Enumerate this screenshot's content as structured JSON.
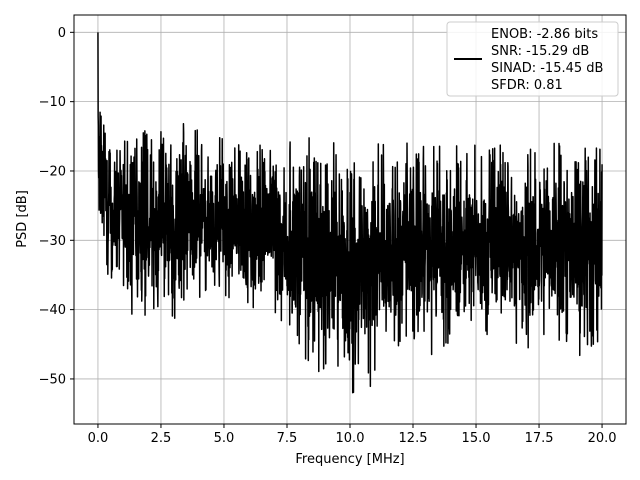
{
  "chart_data": {
    "type": "line",
    "title": "",
    "xlabel": "Frequency [MHz]",
    "ylabel": "PSD [dB]",
    "xlim": [
      -0.95,
      20.95
    ],
    "ylim": [
      -56.5,
      2.5
    ],
    "xticks": [
      0.0,
      2.5,
      5.0,
      7.5,
      10.0,
      12.5,
      15.0,
      17.5,
      20.0
    ],
    "xtick_labels": [
      "0.0",
      "2.5",
      "5.0",
      "7.5",
      "10.0",
      "12.5",
      "15.0",
      "17.5",
      "20.0"
    ],
    "yticks": [
      0,
      -10,
      -20,
      -30,
      -40,
      -50
    ],
    "ytick_labels": [
      "0",
      "−10",
      "−20",
      "−30",
      "−40",
      "−50"
    ],
    "grid": true,
    "legend": {
      "placement": "upper-right",
      "lines": [
        "ENOB: -2.86 bits",
        "SNR: -15.29 dB",
        "SINAD: -15.45 dB",
        "SFDR: 0.81"
      ]
    },
    "series": [
      {
        "color": "#000000",
        "x": [
          0.0,
          0.02,
          0.05,
          0.08,
          0.12,
          0.16,
          0.2,
          0.25,
          0.3,
          0.35,
          0.4,
          0.5,
          0.6,
          0.8,
          1.0,
          1.2,
          1.5,
          1.8,
          2.0,
          2.5,
          3.0,
          3.3,
          4.0,
          5.0,
          6.0,
          7.0,
          7.5,
          8.0,
          8.8,
          9.5,
          10.0,
          10.5,
          11.0,
          12.0,
          12.5,
          13.0,
          14.0,
          14.5,
          15.0,
          16.0,
          17.0,
          17.5,
          18.0,
          19.0,
          19.5,
          20.0
        ],
        "y_max": [
          0,
          -7,
          -8,
          -9,
          -11,
          -13,
          -14,
          -11,
          -12,
          -15,
          -14,
          -13,
          -14,
          -15,
          -14,
          -14,
          -15,
          -13,
          -14,
          -14,
          -15,
          -13,
          -14,
          -14,
          -15,
          -15,
          -16,
          -15,
          -15,
          -16,
          -16,
          -16,
          -16,
          -15,
          -16,
          -15,
          -16,
          -16,
          -16,
          -16,
          -16,
          -15,
          -16,
          -16,
          -16,
          -17
        ],
        "y_min": [
          -23,
          -28,
          -38,
          -30,
          -28,
          -33,
          -30,
          -35,
          -33,
          -37,
          -39,
          -41,
          -38,
          -38,
          -39,
          -39,
          -43,
          -40,
          -43,
          -40,
          -42,
          -44,
          -40,
          -40,
          -41,
          -40,
          -46,
          -47,
          -54,
          -48,
          -54,
          -50,
          -52,
          -48,
          -44,
          -47,
          -47,
          -45,
          -45,
          -44,
          -46,
          -45,
          -45,
          -46,
          -50,
          -44
        ]
      }
    ]
  }
}
